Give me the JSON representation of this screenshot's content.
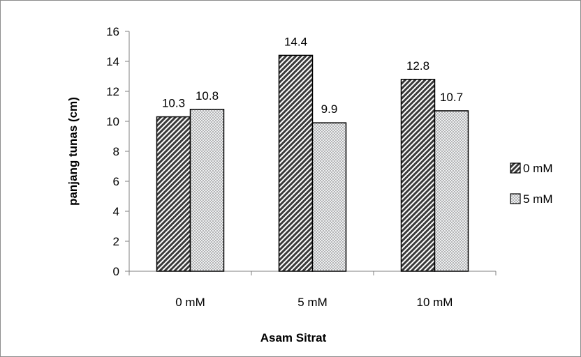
{
  "chart_data": {
    "type": "bar",
    "categories": [
      "0 mM",
      "5 mM",
      "10 mM"
    ],
    "series": [
      {
        "name": "0 mM",
        "values": [
          10.3,
          14.4,
          12.8
        ],
        "pattern": "diagonal-stripes",
        "color": "#404040"
      },
      {
        "name": "5 mM",
        "values": [
          10.8,
          9.9,
          10.7
        ],
        "pattern": "dots",
        "color": "#a0a0a0"
      }
    ],
    "xlabel": "Asam Sitrat",
    "ylabel": "panjang tunas (cm)",
    "ylim": [
      0,
      16
    ],
    "yticks": [
      "0",
      "2",
      "4",
      "6",
      "8",
      "10",
      "12",
      "14",
      "16"
    ],
    "data_labels": [
      [
        "10.3",
        "14.4",
        "12.8"
      ],
      [
        "10.8",
        "9.9",
        "10.7"
      ]
    ],
    "legend_position": "right",
    "grid": false
  }
}
